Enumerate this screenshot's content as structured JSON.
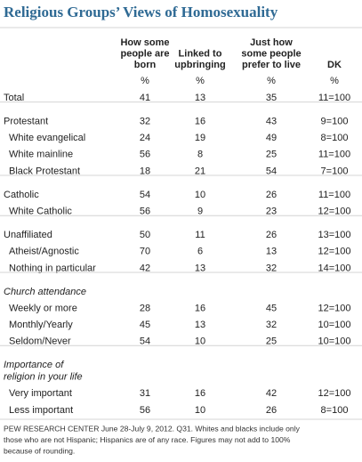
{
  "header": {
    "title": "Religious Groups’ Views of Homosexuality"
  },
  "table": {
    "columns": [
      [
        "How some",
        "people are",
        "born"
      ],
      [
        "Linked to",
        "upbringing"
      ],
      [
        "Just how",
        "some people",
        "prefer to live"
      ],
      [
        "DK"
      ]
    ],
    "units": [
      "%",
      "%",
      "%",
      "%"
    ],
    "sections": [
      {
        "rows": [
          {
            "label": "Total",
            "values": [
              41,
              13,
              35,
              "11=100"
            ]
          }
        ]
      },
      {
        "rows": [
          {
            "label": "Protestant",
            "values": [
              32,
              16,
              43,
              "9=100"
            ]
          },
          {
            "label": "White evangelical",
            "values": [
              24,
              19,
              49,
              "8=100"
            ]
          },
          {
            "label": "White mainline",
            "values": [
              56,
              8,
              25,
              "11=100"
            ]
          },
          {
            "label": "Black Protestant",
            "values": [
              18,
              21,
              54,
              "7=100"
            ]
          }
        ]
      },
      {
        "rows": [
          {
            "label": "Catholic",
            "values": [
              54,
              10,
              26,
              "11=100"
            ]
          },
          {
            "label": "White Catholic",
            "values": [
              56,
              9,
              23,
              "12=100"
            ]
          }
        ]
      },
      {
        "rows": [
          {
            "label": "Unaffiliated",
            "values": [
              50,
              11,
              26,
              "13=100"
            ]
          },
          {
            "label": "Atheist/Agnostic",
            "values": [
              70,
              6,
              13,
              "12=100"
            ]
          },
          {
            "label": "Nothing in particular",
            "values": [
              42,
              13,
              32,
              "14=100"
            ]
          }
        ]
      },
      {
        "heading": [
          "Church attendance"
        ],
        "rows": [
          {
            "label": "Weekly or more",
            "values": [
              28,
              16,
              45,
              "12=100"
            ]
          },
          {
            "label": "Monthly/Yearly",
            "values": [
              45,
              13,
              32,
              "10=100"
            ]
          },
          {
            "label": "Seldom/Never",
            "values": [
              54,
              10,
              25,
              "10=100"
            ]
          }
        ]
      },
      {
        "heading": [
          "Importance of",
          "religion in your life"
        ],
        "rows": [
          {
            "label": "Very important",
            "values": [
              31,
              16,
              42,
              "12=100"
            ]
          },
          {
            "label": "Less important",
            "values": [
              56,
              10,
              26,
              "8=100"
            ]
          }
        ]
      }
    ]
  },
  "footer": {
    "note": [
      "PEW RESEARCH CENTER June 28-July 9, 2012. Q31. Whites and blacks include only",
      "those who are not Hispanic; Hispanics are of any race. Figures may not add to 100%",
      "because of rounding."
    ]
  }
}
